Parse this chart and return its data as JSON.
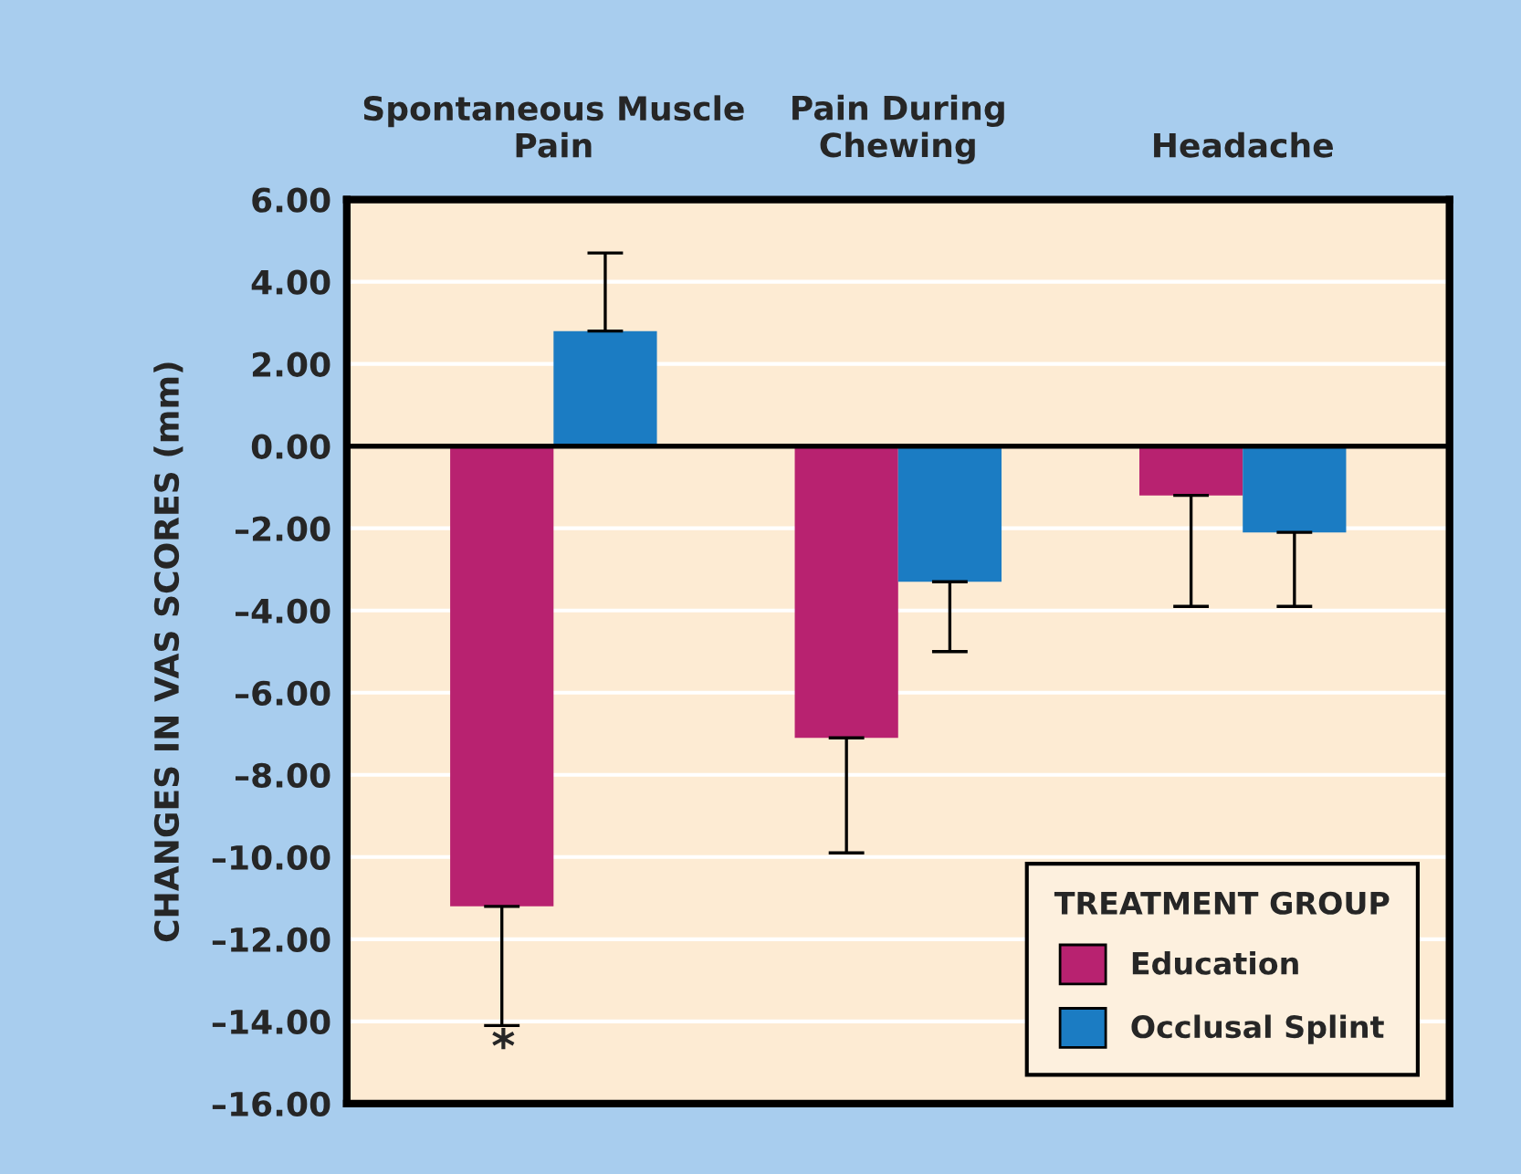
{
  "chart_data": {
    "type": "bar",
    "ylabel": "CHANGES IN VAS SCORES (mm)",
    "legend_title": "TREATMENT GROUP",
    "categories": [
      "Spontaneous Muscle\nPain",
      "Pain During\nChewing",
      "Headache"
    ],
    "series": [
      {
        "name": "Education",
        "color": "#b82270",
        "values": [
          -11.2,
          -7.1,
          -1.2
        ],
        "errors": [
          [
            -14.1,
            -11.2
          ],
          [
            -9.9,
            -7.1
          ],
          [
            -3.9,
            -1.2
          ]
        ]
      },
      {
        "name": "Occlusal Splint",
        "color": "#1b7cc3",
        "values": [
          2.8,
          -3.3,
          -2.1
        ],
        "errors": [
          [
            2.8,
            4.7
          ],
          [
            -5.0,
            -3.3
          ],
          [
            -3.9,
            -2.1
          ]
        ]
      }
    ],
    "ylim": [
      -16,
      6
    ],
    "yticks": [
      {
        "value": 6,
        "label": "6.00"
      },
      {
        "value": 4,
        "label": "4.00"
      },
      {
        "value": 2,
        "label": "2.00"
      },
      {
        "value": 0,
        "label": "0.00"
      },
      {
        "value": -2,
        "label": "–2.00"
      },
      {
        "value": -4,
        "label": "–4.00"
      },
      {
        "value": -6,
        "label": "–6.00"
      },
      {
        "value": -8,
        "label": "–8.00"
      },
      {
        "value": -10,
        "label": "–10.00"
      },
      {
        "value": -12,
        "label": "–12.00"
      },
      {
        "value": -14,
        "label": "–14.00"
      },
      {
        "value": -16,
        "label": "–16.00"
      }
    ],
    "ref_lines": [
      {
        "axis": "y",
        "value": 0,
        "color": "#000000"
      }
    ],
    "annotations": [
      "*"
    ],
    "grid": "y",
    "legend": "bottom right"
  }
}
